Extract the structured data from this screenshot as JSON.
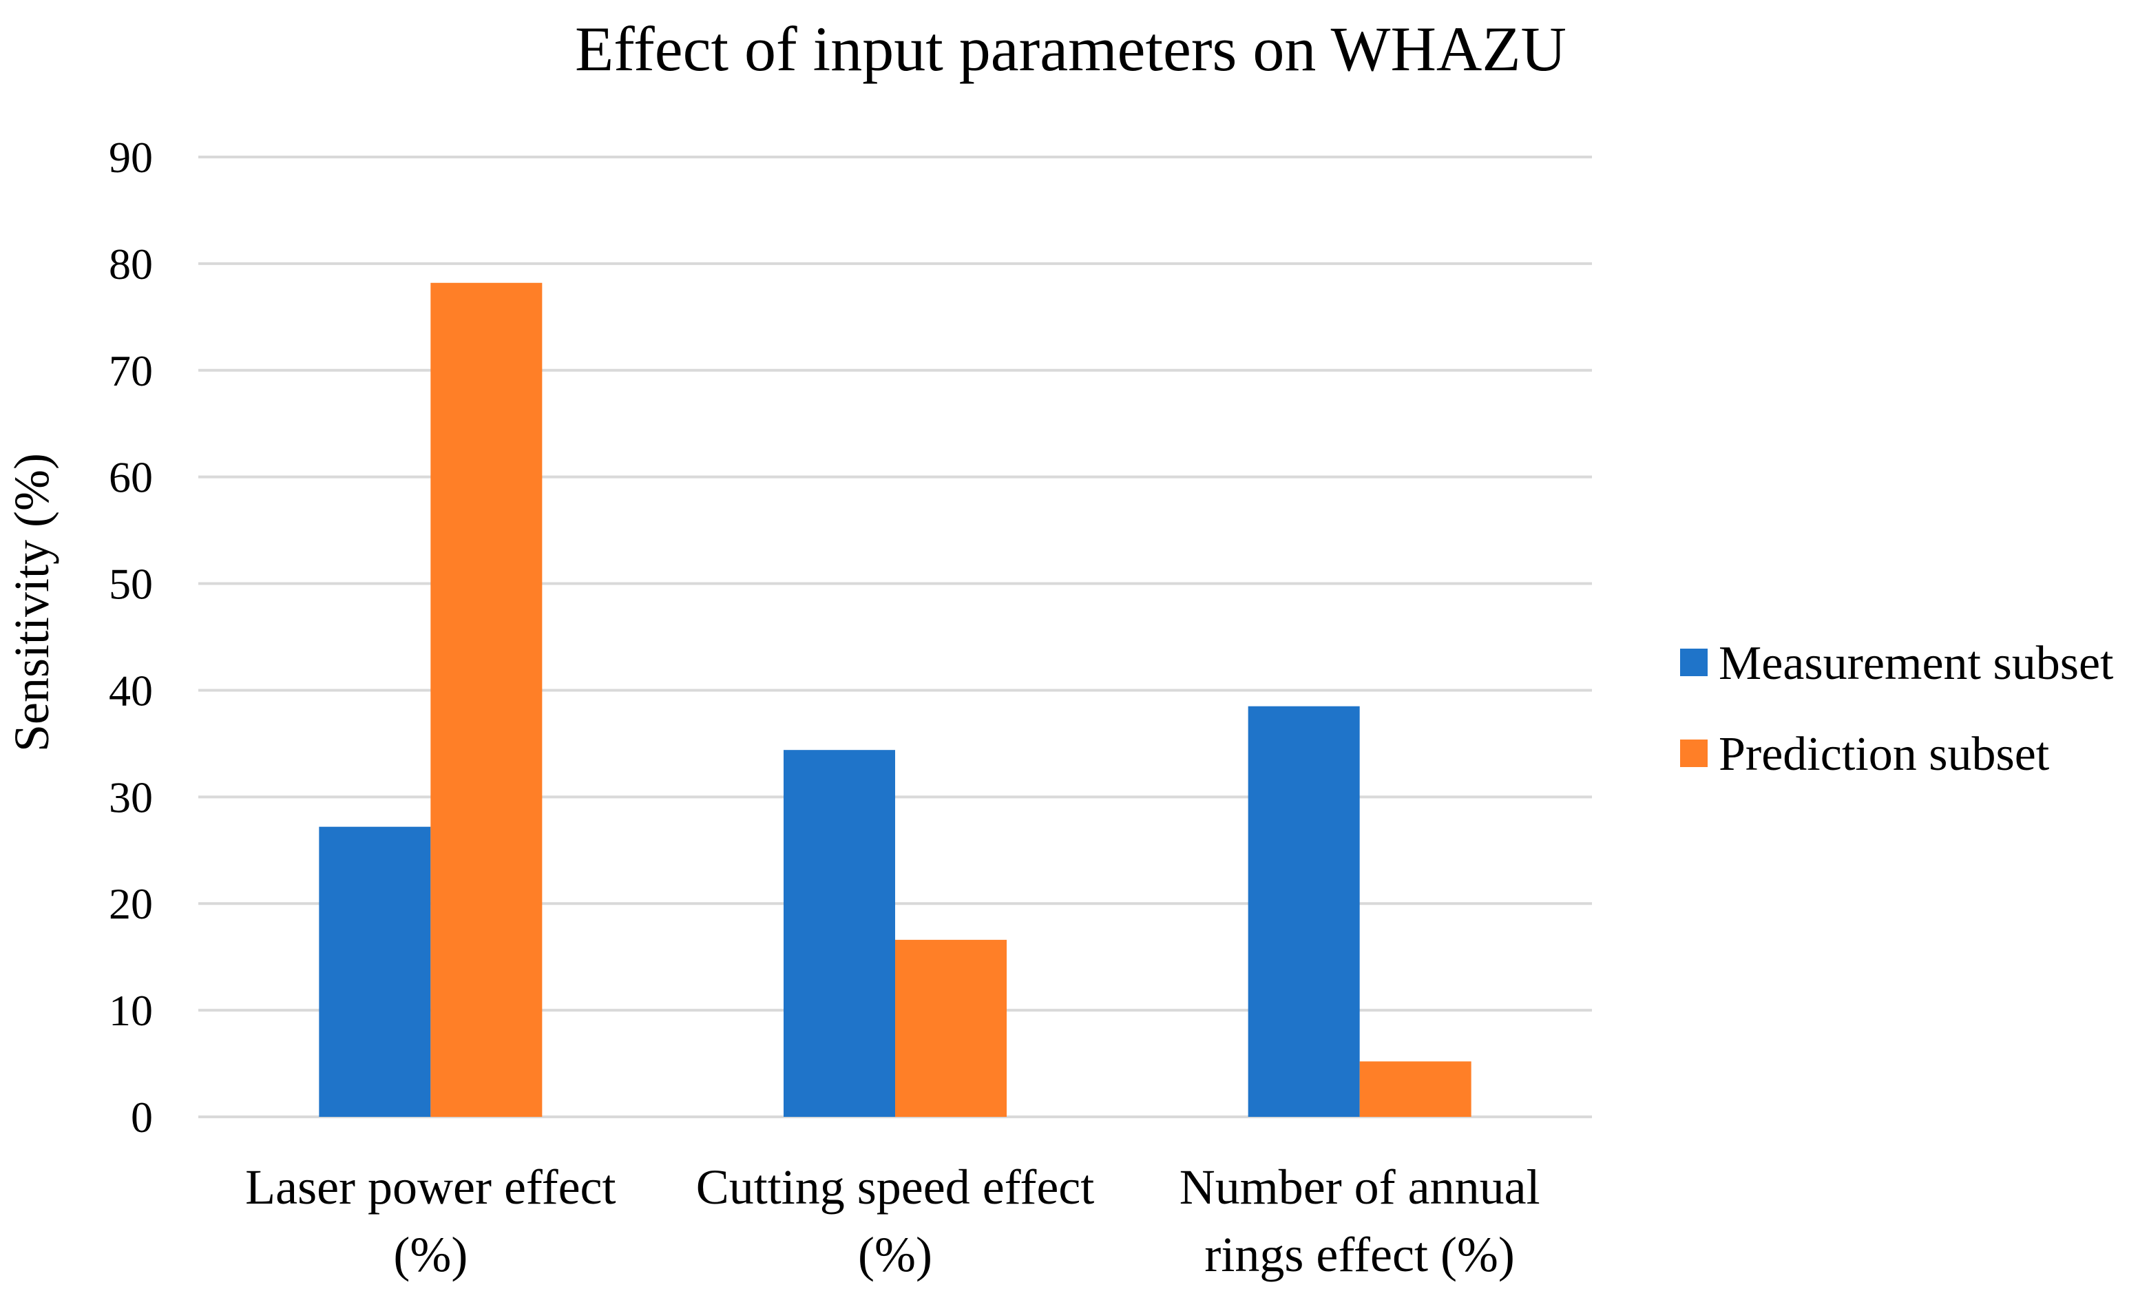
{
  "chart_data": {
    "type": "bar",
    "title": "Effect of input parameters on WHAZU",
    "xlabel": "",
    "ylabel": "Sensitivity (%)",
    "ylim": [
      0,
      90
    ],
    "yticks": [
      0,
      10,
      20,
      30,
      40,
      50,
      60,
      70,
      80,
      90
    ],
    "grid": true,
    "legend_position": "right",
    "categories": [
      [
        "Laser power effect",
        "(%)"
      ],
      [
        "Cutting speed effect",
        "(%)"
      ],
      [
        "Number of annual",
        "rings effect (%)"
      ]
    ],
    "series": [
      {
        "name": "Measurement subset",
        "color": "#1f74c9",
        "values": [
          27.2,
          34.4,
          38.5
        ]
      },
      {
        "name": "Prediction subset",
        "color": "#ff7f27",
        "values": [
          78.2,
          16.6,
          5.2
        ]
      }
    ],
    "gridline_color": "#d9d9d9"
  }
}
